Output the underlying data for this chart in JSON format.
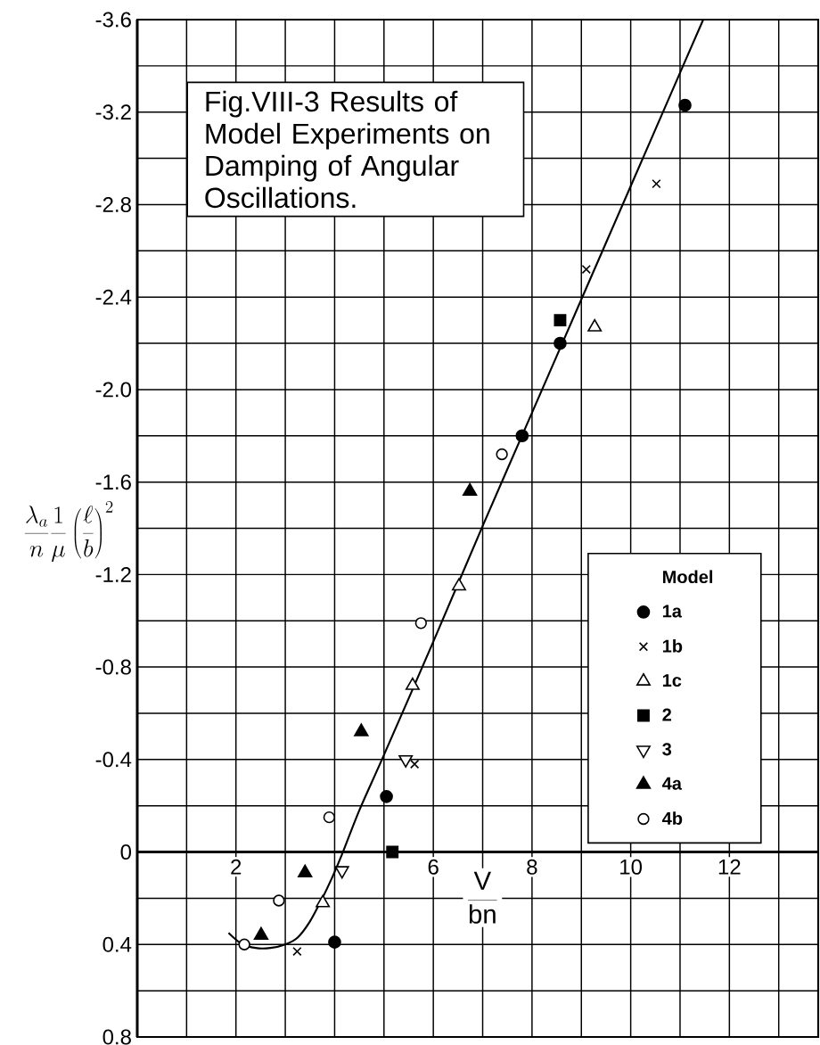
{
  "chart_data": {
    "type": "scatter",
    "title": "Fig.VIII-3 Results of Model Experiments on Damping of Angular Oscillations.",
    "xlabel": "\\frac{\\mathrm{V}}{\\mathrm{bn}}",
    "ylabel": "\\frac{\\lambda_a}{n}\\frac{1}{\\mu}\\left(\\frac{\\ell}{b}\\right)^{2}",
    "legend_title": "Model",
    "xlim": [
      0,
      13.8
    ],
    "ylim": [
      0.8,
      -3.6
    ],
    "xticks": [
      {
        "value": 1,
        "label": null
      },
      2,
      {
        "value": 3,
        "label": null
      },
      {
        "value": 4,
        "label": null
      },
      {
        "value": 5,
        "label": null
      },
      6,
      {
        "value": 7,
        "label": null
      },
      8,
      {
        "value": 9,
        "label": null
      },
      10,
      {
        "value": 11,
        "label": null
      },
      12,
      {
        "value": 13,
        "label": null
      }
    ],
    "yticks": [
      -3.6,
      {
        "value": -3.4,
        "label": null
      },
      -3.2,
      {
        "value": -3.0,
        "label": null
      },
      -2.8,
      {
        "value": -2.6,
        "label": null
      },
      -2.4,
      {
        "value": -2.2,
        "label": null
      },
      {
        "value": -2.0,
        "label": "-2.0"
      },
      {
        "value": -1.8,
        "label": null
      },
      -1.6,
      {
        "value": -1.4,
        "label": null
      },
      -1.2,
      {
        "value": -1.0,
        "label": null
      },
      -0.8,
      {
        "value": -0.6,
        "label": null
      },
      -0.4,
      {
        "value": -0.2,
        "label": null
      },
      0,
      {
        "value": 0.2,
        "label": null
      },
      0.4,
      {
        "value": 0.6,
        "label": null
      },
      0.8
    ],
    "grid": true,
    "legend": "bottom right",
    "series": [
      {
        "name": "1a",
        "color": "#000000",
        "marker": "circle",
        "x": [
          11.1,
          8.57,
          7.8,
          5.05,
          4.0
        ],
        "values": [
          -3.23,
          -2.2,
          -1.8,
          -0.24,
          0.39
        ]
      },
      {
        "name": "1b",
        "color": "#000000",
        "marker": "cross",
        "x": [
          10.52,
          9.1,
          5.62,
          3.24
        ],
        "values": [
          -2.89,
          -2.52,
          -0.38,
          0.43
        ]
      },
      {
        "name": "1c",
        "color": "#000000",
        "marker": "triangle-open",
        "x": [
          9.27,
          6.52,
          5.58,
          3.76
        ],
        "values": [
          -2.27,
          -1.15,
          -0.72,
          0.22
        ]
      },
      {
        "name": "2",
        "color": "#000000",
        "marker": "square",
        "x": [
          8.57,
          5.17
        ],
        "values": [
          -2.3,
          0.0
        ]
      },
      {
        "name": "3",
        "color": "#000000",
        "marker": "triangle-down-open",
        "x": [
          5.44,
          4.15
        ],
        "values": [
          -0.4,
          0.08
        ]
      },
      {
        "name": "4a",
        "color": "#000000",
        "marker": "triangle",
        "x": [
          6.74,
          4.54,
          3.4,
          2.51
        ],
        "values": [
          -1.56,
          -0.52,
          0.09,
          0.36
        ]
      },
      {
        "name": "4b",
        "color": "#000000",
        "marker": "circle-open",
        "x": [
          7.39,
          5.75,
          3.89,
          2.87,
          2.17
        ],
        "values": [
          -1.72,
          -0.99,
          -0.15,
          0.21,
          0.4
        ]
      },
      {
        "type": "line",
        "color": "#000000",
        "marker": "none",
        "x": [
          1.85,
          2.1,
          2.4,
          2.7,
          3.0,
          3.25,
          3.5,
          3.75,
          3.95,
          4.15,
          4.5,
          5.0,
          6.0,
          7.0,
          8.0,
          9.0,
          10.0,
          11.0,
          11.47
        ],
        "values": [
          0.35,
          0.395,
          0.415,
          0.415,
          0.4,
          0.37,
          0.3,
          0.2,
          0.11,
          0.01,
          -0.18,
          -0.42,
          -0.91,
          -1.41,
          -1.9,
          -2.39,
          -2.88,
          -3.37,
          -3.6
        ]
      }
    ]
  }
}
